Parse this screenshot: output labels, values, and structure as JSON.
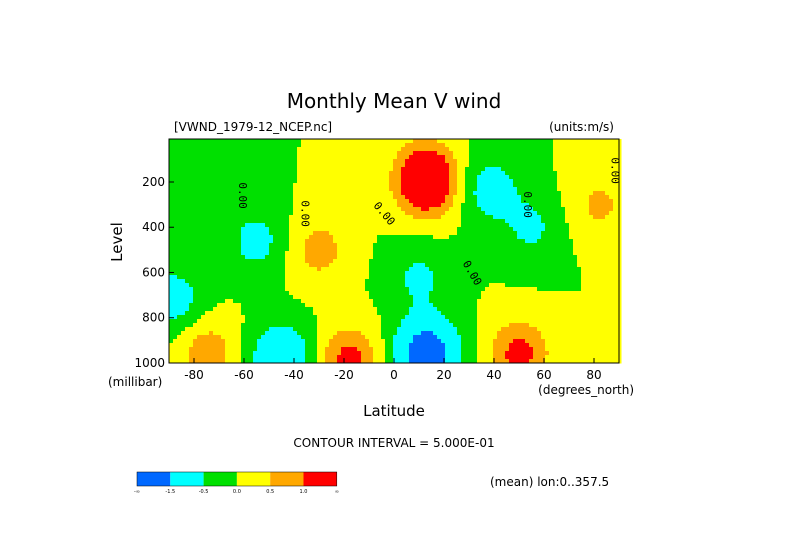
{
  "chart_data": {
    "type": "heatmap",
    "title": "Monthly Mean V wind",
    "dataset_label": "[VWND_1979-12_NCEP.nc]",
    "units_label": "(units:m/s)",
    "xlabel": "Latitude",
    "x_units": "(degrees_north)",
    "ylabel": "Level",
    "y_units": "(millibar)",
    "xlim": [
      -90,
      90
    ],
    "ylim": [
      1000,
      10
    ],
    "x_ticks": [
      "-80",
      "-60",
      "-40",
      "-20",
      "0",
      "20",
      "40",
      "60",
      "80"
    ],
    "y_ticks": [
      "200",
      "400",
      "600",
      "800",
      "1000"
    ],
    "contour_interval_label": "CONTOUR INTERVAL = 5.000E-01",
    "mean_label": "(mean) lon:0..357.5",
    "contour_labels": [
      "0.00",
      "0.00",
      "0.00",
      "0.00",
      "0.00",
      "0.00"
    ],
    "colorbar": {
      "colors": [
        "#0068ff",
        "#00ffff",
        "#00e000",
        "#ffff00",
        "#ffa800",
        "#ff0000"
      ],
      "labels": [
        "-∞",
        "-1.5",
        "-0.5",
        "0.0",
        "0.5",
        "1.0",
        "∞"
      ]
    },
    "centers": [
      {
        "lat": 13,
        "p": 190,
        "value": 2.2
      },
      {
        "lat": 13,
        "p": 960,
        "value": -2.2
      },
      {
        "lat": -18,
        "p": 990,
        "value": 1.2
      },
      {
        "lat": 50,
        "p": 960,
        "value": 1.2
      },
      {
        "lat": -45,
        "p": 980,
        "value": -1.3
      },
      {
        "lat": 38,
        "p": 230,
        "value": -0.8
      },
      {
        "lat": -88,
        "p": 720,
        "value": -0.8
      },
      {
        "lat": -55,
        "p": 460,
        "value": -0.7
      },
      {
        "lat": -30,
        "p": 500,
        "value": 0.7
      },
      {
        "lat": 10,
        "p": 620,
        "value": -0.6
      },
      {
        "lat": 55,
        "p": 400,
        "value": -0.6
      },
      {
        "lat": 82,
        "p": 300,
        "value": 0.6
      },
      {
        "lat": -75,
        "p": 950,
        "value": 0.8
      }
    ],
    "grid": false,
    "legend": "bottom-left colorbar"
  }
}
